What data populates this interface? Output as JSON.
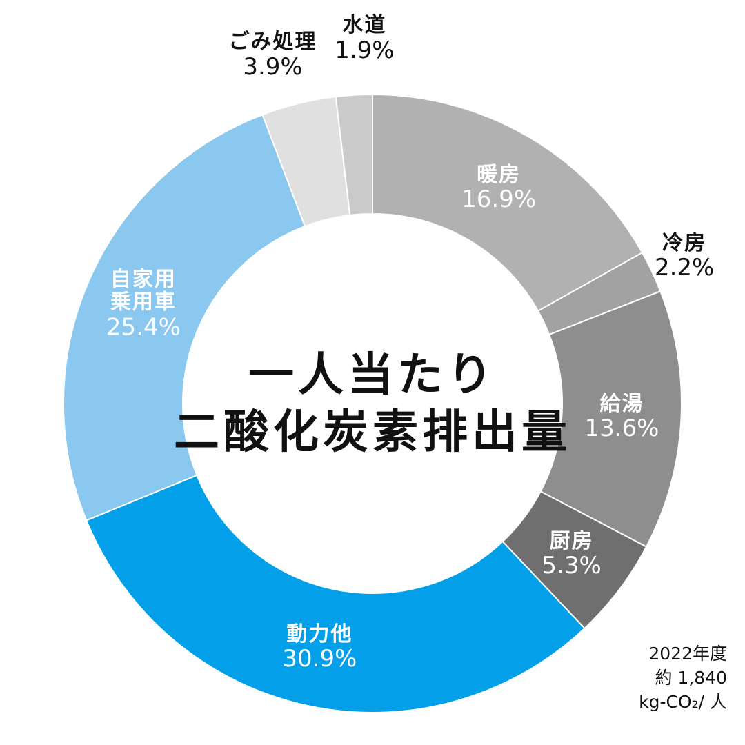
{
  "chart_data": {
    "type": "pie",
    "title": "一人当たり二酸化炭素排出量",
    "title_lines": [
      "一人当たり",
      "二酸化炭素排出量"
    ],
    "slices": [
      {
        "label": "暖房",
        "label_lines": [
          "暖房"
        ],
        "value": 16.9,
        "value_text": "16.9%",
        "color": "#b1b1b2"
      },
      {
        "label": "冷房",
        "label_lines": [
          "冷房"
        ],
        "value": 2.2,
        "value_text": "2.2%",
        "color": "#a2a2a3"
      },
      {
        "label": "給湯",
        "label_lines": [
          "給湯"
        ],
        "value": 13.6,
        "value_text": "13.6%",
        "color": "#8e8e8f"
      },
      {
        "label": "厨房",
        "label_lines": [
          "厨房"
        ],
        "value": 5.3,
        "value_text": "5.3%",
        "color": "#706f70"
      },
      {
        "label": "動力他",
        "label_lines": [
          "動力他"
        ],
        "value": 30.9,
        "value_text": "30.9%",
        "color": "#03a0e9"
      },
      {
        "label": "自家用乗用車",
        "label_lines": [
          "自家用",
          "乗用車"
        ],
        "value": 25.4,
        "value_text": "25.4%",
        "color": "#8bc8ef"
      },
      {
        "label": "ごみ処理",
        "label_lines": [
          "ごみ処理"
        ],
        "value": 3.9,
        "value_text": "3.9%",
        "color": "#e0e0e0"
      },
      {
        "label": "水道",
        "label_lines": [
          "水道"
        ],
        "value": 1.9,
        "value_text": "1.9%",
        "color": "#cacaca"
      }
    ],
    "footnote_lines": [
      "2022年度",
      "約 1,840",
      "kg-CO₂/ 人"
    ]
  }
}
